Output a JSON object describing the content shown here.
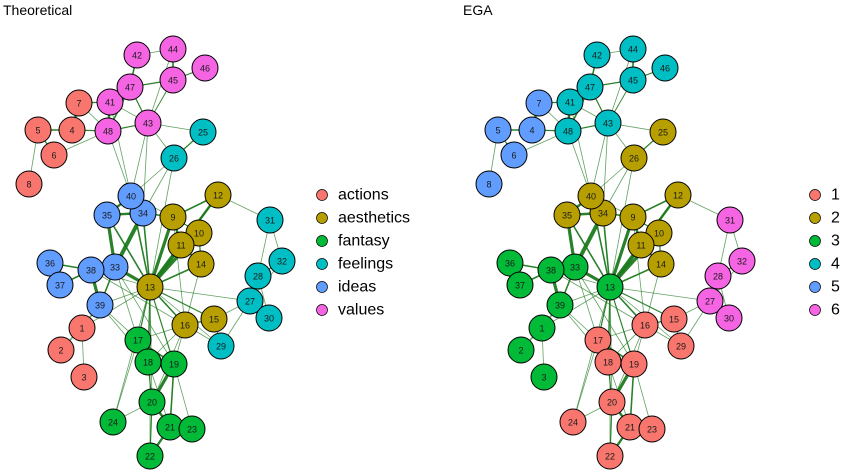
{
  "panels": [
    {
      "title": "Theoretical",
      "legend": [
        {
          "label": "actions",
          "color": "#F8766D"
        },
        {
          "label": "aesthetics",
          "color": "#B79F00"
        },
        {
          "label": "fantasy",
          "color": "#00BA38"
        },
        {
          "label": "feelings",
          "color": "#00BFC4"
        },
        {
          "label": "ideas",
          "color": "#619CFF"
        },
        {
          "label": "values",
          "color": "#F564E3"
        }
      ],
      "node_groups": {
        "1": "actions",
        "2": "actions",
        "3": "actions",
        "4": "actions",
        "5": "actions",
        "6": "actions",
        "7": "actions",
        "8": "actions",
        "9": "aesthetics",
        "10": "aesthetics",
        "11": "aesthetics",
        "12": "aesthetics",
        "13": "aesthetics",
        "14": "aesthetics",
        "15": "aesthetics",
        "16": "aesthetics",
        "17": "fantasy",
        "18": "fantasy",
        "19": "fantasy",
        "20": "fantasy",
        "21": "fantasy",
        "22": "fantasy",
        "23": "fantasy",
        "24": "fantasy",
        "25": "feelings",
        "26": "feelings",
        "27": "feelings",
        "28": "feelings",
        "29": "feelings",
        "30": "feelings",
        "31": "feelings",
        "32": "feelings",
        "33": "ideas",
        "34": "ideas",
        "35": "ideas",
        "36": "ideas",
        "37": "ideas",
        "38": "ideas",
        "39": "ideas",
        "40": "ideas",
        "41": "values",
        "42": "values",
        "43": "values",
        "44": "values",
        "45": "values",
        "46": "values",
        "47": "values",
        "48": "values"
      }
    },
    {
      "title": "EGA",
      "legend": [
        {
          "label": "1",
          "color": "#F8766D"
        },
        {
          "label": "2",
          "color": "#B79F00"
        },
        {
          "label": "3",
          "color": "#00BA38"
        },
        {
          "label": "4",
          "color": "#00BFC4"
        },
        {
          "label": "5",
          "color": "#619CFF"
        },
        {
          "label": "6",
          "color": "#F564E3"
        }
      ],
      "node_groups": {
        "15": "1",
        "16": "1",
        "17": "1",
        "18": "1",
        "19": "1",
        "20": "1",
        "21": "1",
        "22": "1",
        "23": "1",
        "24": "1",
        "29": "1",
        "9": "2",
        "10": "2",
        "11": "2",
        "12": "2",
        "14": "2",
        "25": "2",
        "26": "2",
        "34": "2",
        "35": "2",
        "40": "2",
        "1": "3",
        "2": "3",
        "3": "3",
        "13": "3",
        "33": "3",
        "36": "3",
        "37": "3",
        "38": "3",
        "39": "3",
        "41": "4",
        "42": "4",
        "43": "4",
        "44": "4",
        "45": "4",
        "46": "4",
        "47": "4",
        "48": "4",
        "4": "5",
        "5": "5",
        "6": "5",
        "7": "5",
        "8": "5",
        "27": "6",
        "28": "6",
        "30": "6",
        "31": "6",
        "32": "6"
      }
    }
  ],
  "edge_color": "#1E7B1E"
}
